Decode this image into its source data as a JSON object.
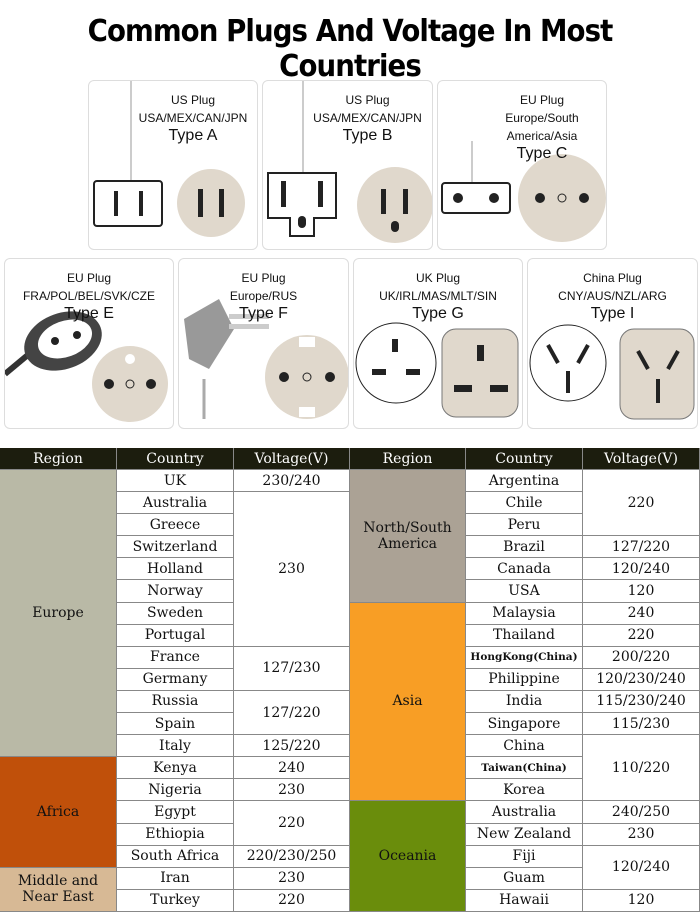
{
  "title": "Common Plugs And Voltage In Most Countries",
  "plugs": [
    {
      "l1": "US Plug",
      "l2": "USA/MEX/CAN/JPN",
      "type": "Type A"
    },
    {
      "l1": "US Plug",
      "l2": "USA/MEX/CAN/JPN",
      "type": "Type B"
    },
    {
      "l1": "EU Plug",
      "l2": "Europe/South America/Asia",
      "type": "Type C"
    },
    {
      "l1": "EU Plug",
      "l2": "FRA/POL/BEL/SVK/CZE",
      "type": "Type E"
    },
    {
      "l1": "EU Plug",
      "l2": "Europe/RUS",
      "type": "Type F"
    },
    {
      "l1": "UK Plug",
      "l2": "UK/IRL/MAS/MLT/SIN",
      "type": "Type G"
    },
    {
      "l1": "China Plug",
      "l2": "CNY/AUS/NZL/ARG",
      "type": "Type I"
    }
  ],
  "table": {
    "headers": [
      "Region",
      "Country",
      "Voltage(V)",
      "Region",
      "Country",
      "Voltage(V)"
    ],
    "left": {
      "regions": [
        {
          "name": "Europe",
          "rows": 13,
          "color": "#b9b9a6"
        },
        {
          "name": "Africa",
          "rows": 5,
          "color": "#c0500a"
        },
        {
          "name": "Middle and Near East",
          "rows": 2,
          "color": "#d7b995"
        }
      ],
      "countries": [
        "UK",
        "Australia",
        "Greece",
        "Switzerland",
        "Holland",
        "Norway",
        "Sweden",
        "Portugal",
        "France",
        "Germany",
        "Russia",
        "Spain",
        "Italy",
        "Kenya",
        "Nigeria",
        "Egypt",
        "Ethiopia",
        "South Africa",
        "Iran",
        "Turkey"
      ],
      "voltages": [
        {
          "v": "230/240",
          "rows": 1
        },
        {
          "v": "230",
          "rows": 7
        },
        {
          "v": "127/230",
          "rows": 2
        },
        {
          "v": "127/220",
          "rows": 2
        },
        {
          "v": "125/220",
          "rows": 1
        },
        {
          "v": "240",
          "rows": 1
        },
        {
          "v": "230",
          "rows": 1
        },
        {
          "v": "220",
          "rows": 2
        },
        {
          "v": "220/230/250",
          "rows": 1
        },
        {
          "v": "230",
          "rows": 1
        },
        {
          "v": "220",
          "rows": 1
        }
      ]
    },
    "right": {
      "regions": [
        {
          "name": "North/South America",
          "rows": 6,
          "color": "#aba295"
        },
        {
          "name": "Asia",
          "rows": 9,
          "color": "#f89e25"
        },
        {
          "name": "Oceania",
          "rows": 5,
          "color": "#6a8d0c"
        }
      ],
      "countries": [
        "Argentina",
        "Chile",
        "Peru",
        "Brazil",
        "Canada",
        "USA",
        "Malaysia",
        "Thailand",
        "HongKong(China)",
        "Philippine",
        "India",
        "Singapore",
        "China",
        "Taiwan(China)",
        "Korea",
        "Australia",
        "New Zealand",
        "Fiji",
        "Guam",
        "Hawaii"
      ],
      "voltages": [
        {
          "v": "220",
          "rows": 3
        },
        {
          "v": "127/220",
          "rows": 1
        },
        {
          "v": "120/240",
          "rows": 1
        },
        {
          "v": "120",
          "rows": 1
        },
        {
          "v": "240",
          "rows": 1
        },
        {
          "v": "220",
          "rows": 1
        },
        {
          "v": "200/220",
          "rows": 1
        },
        {
          "v": "120/230/240",
          "rows": 1
        },
        {
          "v": "115/230/240",
          "rows": 1
        },
        {
          "v": "115/230",
          "rows": 1
        },
        {
          "v": "110/220",
          "rows": 3
        },
        {
          "v": "240/250",
          "rows": 1
        },
        {
          "v": "230",
          "rows": 1
        },
        {
          "v": "120/240",
          "rows": 2
        },
        {
          "v": "120",
          "rows": 1
        }
      ]
    }
  }
}
